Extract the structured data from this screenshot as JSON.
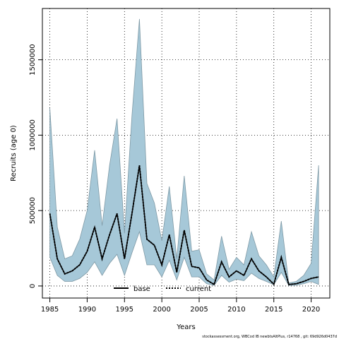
{
  "chart_data": {
    "type": "area",
    "xlabel": "Years",
    "ylabel": "Recruits (age 0)",
    "xlim": [
      1984,
      2022.5
    ],
    "ylim": [
      -80000,
      1840000
    ],
    "xticks": [
      1985,
      1990,
      1995,
      2000,
      2005,
      2010,
      2015,
      2020
    ],
    "yticks": [
      0,
      500000,
      1000000,
      1500000
    ],
    "ytick_labels": [
      "0",
      "500000",
      "1000000",
      "1500000"
    ],
    "grid": true,
    "legend_position": "bottom-center",
    "colors": {
      "band": "#a6c8d8",
      "band_edge": "#7f9aa6",
      "line": "#000000"
    },
    "x": [
      1985,
      1986,
      1987,
      1988,
      1989,
      1990,
      1991,
      1992,
      1993,
      1994,
      1995,
      1996,
      1997,
      1998,
      1999,
      2000,
      2001,
      2002,
      2003,
      2004,
      2005,
      2006,
      2007,
      2008,
      2009,
      2010,
      2011,
      2012,
      2013,
      2014,
      2015,
      2016,
      2017,
      2018,
      2019,
      2020,
      2021
    ],
    "band_upper": [
      1180000,
      390000,
      180000,
      200000,
      310000,
      500000,
      900000,
      400000,
      800000,
      1110000,
      350000,
      1130000,
      1770000,
      680000,
      550000,
      300000,
      660000,
      180000,
      730000,
      230000,
      240000,
      80000,
      40000,
      330000,
      110000,
      190000,
      140000,
      360000,
      200000,
      140000,
      60000,
      430000,
      20000,
      30000,
      70000,
      150000,
      800000
    ],
    "band_lower": [
      190000,
      70000,
      30000,
      30000,
      50000,
      90000,
      160000,
      70000,
      150000,
      210000,
      70000,
      220000,
      360000,
      140000,
      140000,
      60000,
      170000,
      40000,
      190000,
      60000,
      60000,
      15000,
      4000,
      70000,
      25000,
      45000,
      35000,
      85000,
      50000,
      30000,
      8000,
      90000,
      3000,
      5000,
      15000,
      30000,
      10000
    ],
    "series": [
      {
        "name": "base",
        "style": "solid",
        "values": [
          480000,
          180000,
          80000,
          100000,
          140000,
          230000,
          390000,
          180000,
          340000,
          480000,
          180000,
          480000,
          800000,
          310000,
          270000,
          140000,
          340000,
          90000,
          370000,
          130000,
          120000,
          40000,
          10000,
          160000,
          60000,
          100000,
          70000,
          180000,
          100000,
          60000,
          12000,
          190000,
          10000,
          15000,
          30000,
          50000,
          60000
        ]
      },
      {
        "name": "current",
        "style": "dotted",
        "values": [
          480000,
          180000,
          80000,
          100000,
          140000,
          230000,
          390000,
          180000,
          340000,
          480000,
          180000,
          480000,
          800000,
          310000,
          270000,
          140000,
          340000,
          90000,
          370000,
          130000,
          120000,
          40000,
          10000,
          160000,
          60000,
          100000,
          70000,
          180000,
          100000,
          60000,
          12000,
          190000,
          10000,
          15000,
          30000,
          50000,
          60000
        ]
      }
    ]
  },
  "footer": "stockassessment.org,  WBCod  IB  newbtsAltPlus,  r14768  ,  git:  69d926d0437d"
}
